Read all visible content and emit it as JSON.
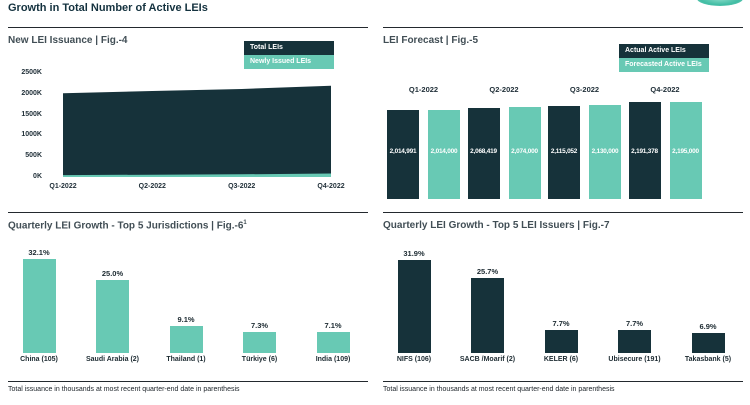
{
  "page": {
    "title": "Growth in Total Number of Active LEIs"
  },
  "colors": {
    "dark": "#16323a",
    "teal": "#68c9b4",
    "accent": "#41bda4"
  },
  "footnote_left": "Total issuance in thousands at most recent quarter-end date in parenthesis",
  "footnote_right": "Total issuance in thousands at most recent quarter-end date in parenthesis",
  "chart_data": [
    {
      "id": "fig4",
      "type": "area",
      "title": "New LEI Issuance | Fig.-4",
      "legend": {
        "0": "Total LEIs",
        "1": "Newly Issued LEIs"
      },
      "legend_position": "top-right",
      "x": [
        "Q1-2022",
        "Q2-2022",
        "Q3-2022",
        "Q4-2022"
      ],
      "y_ticks": [
        "2500K",
        "2000K",
        "1500K",
        "1000K",
        "500K",
        "0K"
      ],
      "ylim": [
        0,
        2500000
      ],
      "grid": false,
      "series": [
        {
          "name": "Total LEIs",
          "color_key": "dark",
          "values": [
            2014991,
            2068419,
            2115052,
            2191378
          ]
        },
        {
          "name": "Newly Issued LEIs",
          "color_key": "teal",
          "values": [
            45000,
            55000,
            65000,
            85000
          ],
          "note": "thin strip, values estimated from pixels"
        }
      ]
    },
    {
      "id": "fig5",
      "type": "bar",
      "title": "LEI Forecast | Fig.-5",
      "legend": {
        "0": "Actual Active LEIs",
        "1": "Forecasted Active LEIs"
      },
      "legend_position": "top-right",
      "categories": [
        "Q1-2022",
        "Q2-2022",
        "Q3-2022",
        "Q4-2022"
      ],
      "ylim": [
        0,
        2195000
      ],
      "grid": false,
      "series": [
        {
          "name": "Actual Active LEIs",
          "color_key": "dark",
          "values": [
            2014991,
            2068419,
            2115052,
            2191378
          ],
          "labels": [
            "2,014,991",
            "2,068,419",
            "2,115,052",
            "2,191,378"
          ]
        },
        {
          "name": "Forecasted Active LEIs",
          "color_key": "teal",
          "values": [
            2014000,
            2074000,
            2130000,
            2195000
          ],
          "labels": [
            "2,014,000",
            "2,074,000",
            "2,130,000",
            "2,195,000"
          ]
        }
      ]
    },
    {
      "id": "fig6",
      "type": "bar",
      "title": "Quarterly LEI Growth - Top 5 Jurisdictions | Fig.-6",
      "title_sup": "1",
      "color_key": "teal",
      "categories": [
        "China (105)",
        "Saudi Arabia (2)",
        "Thailand (1)",
        "Türkiye (6)",
        "India (109)"
      ],
      "values": [
        32.1,
        25.0,
        9.1,
        7.3,
        7.1
      ],
      "labels": [
        "32.1%",
        "25.0%",
        "9.1%",
        "7.3%",
        "7.1%"
      ],
      "ylim": [
        0,
        35
      ],
      "grid": false
    },
    {
      "id": "fig7",
      "type": "bar",
      "title": "Quarterly LEI Growth - Top 5 LEI Issuers | Fig.-7",
      "color_key": "dark",
      "categories": [
        "NIFS (106)",
        "SACB /Moarif (2)",
        "KELER (6)",
        "Ubisecure (191)",
        "Takasbank (5)"
      ],
      "values": [
        31.9,
        25.7,
        7.7,
        7.7,
        6.9
      ],
      "labels": [
        "31.9%",
        "25.7%",
        "7.7%",
        "7.7%",
        "6.9%"
      ],
      "ylim": [
        0,
        35
      ],
      "grid": false
    }
  ]
}
